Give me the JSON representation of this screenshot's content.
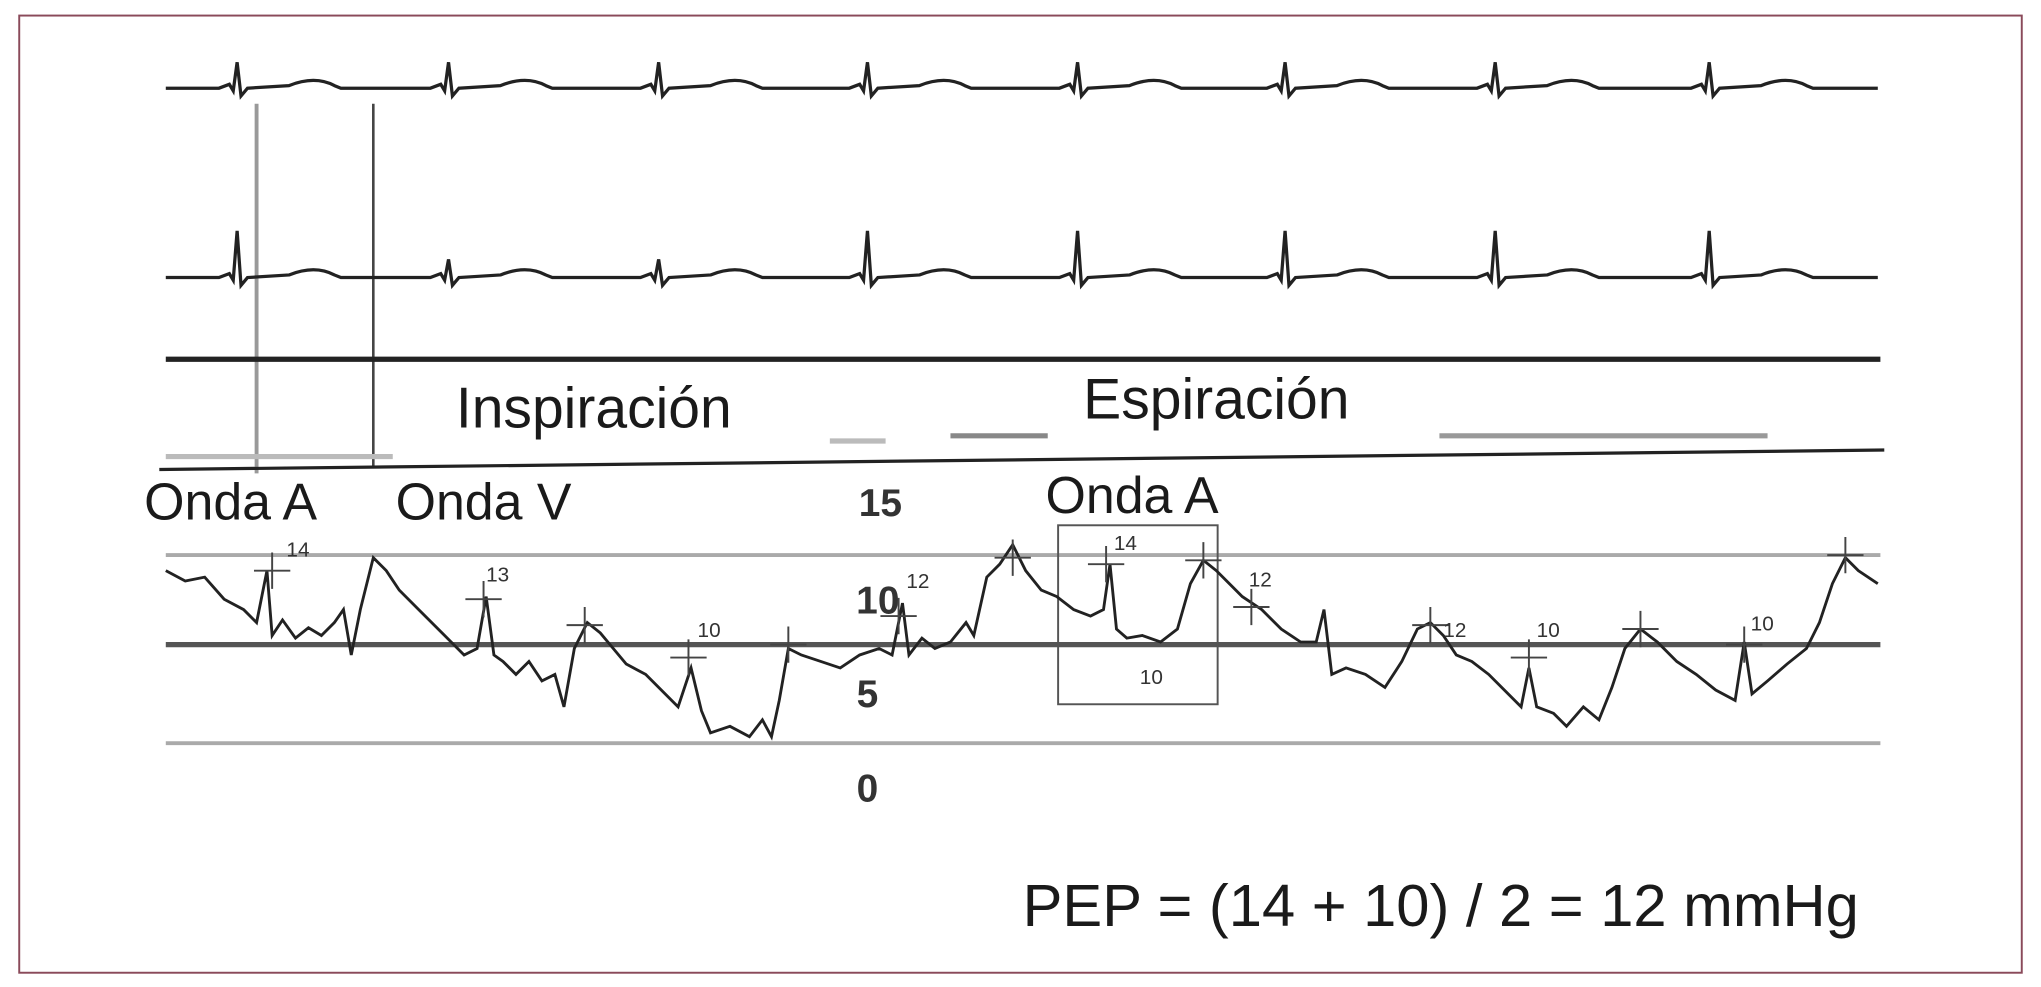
{
  "phases": [
    "Inspiración",
    "Espiración"
  ],
  "waves": [
    "Onda A",
    "Onda V",
    "Onda A"
  ],
  "scale": [
    15,
    10,
    5,
    0
  ],
  "marks": [
    14,
    13,
    12,
    10,
    12,
    14,
    10,
    12,
    10,
    10
  ],
  "formula": "PEP = (14 + 10) / 2 = 12 mmHg"
}
